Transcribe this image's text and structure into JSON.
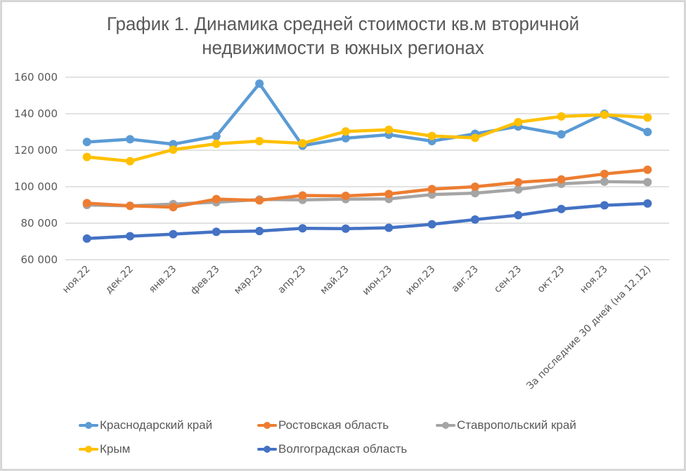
{
  "chart_data": {
    "type": "line",
    "title": "График 1. Динамика средней стоимости кв.м вторичной недвижимости в южных регионах",
    "title_lines": [
      "График 1. Динамика средней стоимости кв.м вторичной",
      "недвижимости в южных регионах"
    ],
    "xlabel": "",
    "ylabel": "",
    "ylim": [
      60000,
      160000
    ],
    "yticks": [
      60000,
      80000,
      100000,
      120000,
      140000,
      160000
    ],
    "ytick_labels": [
      "60 000",
      "80 000",
      "100 000",
      "120 000",
      "140 000",
      "160 000"
    ],
    "grid": true,
    "legend_position": "bottom",
    "categories": [
      "ноя.22",
      "дек.22",
      "янв.23",
      "фев.23",
      "мар.23",
      "апр.23",
      "май.23",
      "июн.23",
      "июл.23",
      "авг.23",
      "сен.23",
      "окт.23",
      "ноя.23",
      "За последние 30 дней (на 12.12)"
    ],
    "series": [
      {
        "name": "Краснодарский край",
        "color": "#5b9bd5",
        "values": [
          124500,
          126000,
          123300,
          127700,
          156500,
          122500,
          126600,
          128500,
          125000,
          129000,
          133000,
          128700,
          140000,
          130000
        ]
      },
      {
        "name": "Ростовская область",
        "color": "#ed7d31",
        "values": [
          91000,
          89500,
          88800,
          93200,
          92500,
          95200,
          95000,
          96000,
          98700,
          100000,
          102400,
          104000,
          107000,
          109300
        ]
      },
      {
        "name": "Ставропольский край",
        "color": "#a5a5a5",
        "values": [
          90000,
          89500,
          90500,
          91500,
          93000,
          92800,
          93200,
          93300,
          95700,
          96500,
          98500,
          101600,
          102800,
          102500
        ]
      },
      {
        "name": "Крым",
        "color": "#ffc000",
        "values": [
          116300,
          114000,
          120300,
          123500,
          125000,
          123800,
          130300,
          131200,
          127800,
          126800,
          135400,
          138500,
          139400,
          137900
        ]
      },
      {
        "name": "Волгоградская область",
        "color": "#4472c4",
        "values": [
          71600,
          72900,
          74000,
          75300,
          75700,
          77200,
          77000,
          77500,
          79400,
          82000,
          84400,
          87800,
          89800,
          90800
        ]
      }
    ]
  }
}
